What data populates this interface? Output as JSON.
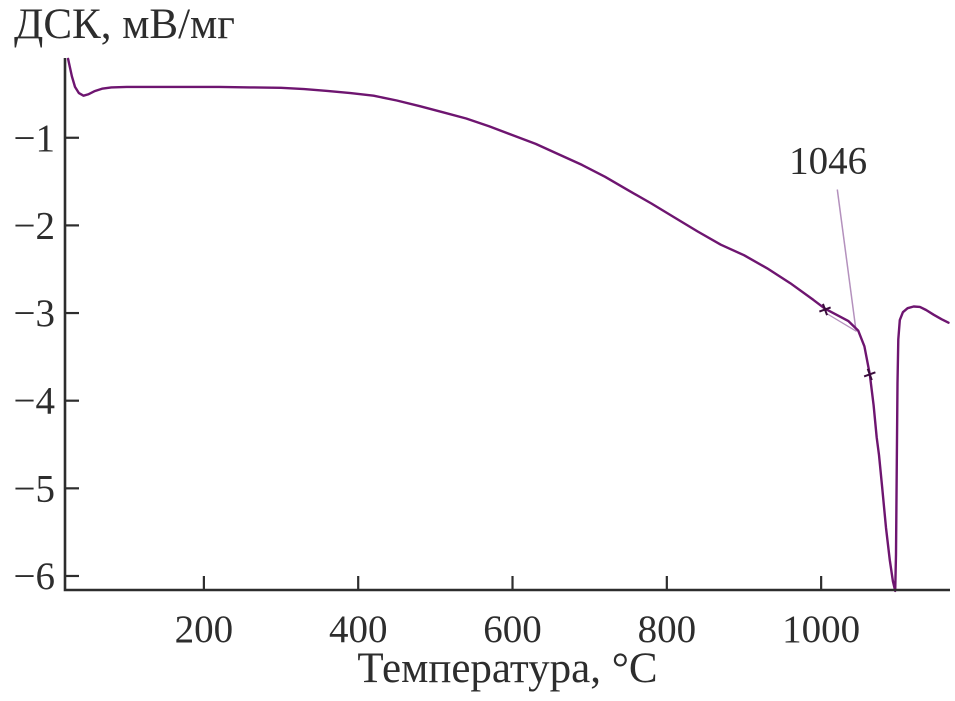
{
  "figure": {
    "background_color": "#ffffff"
  },
  "colors": {
    "curve": "#6e1570",
    "leader_line": "#b491bd",
    "axis": "#2d2d2d",
    "text": "#2d2d2d",
    "marker": "#3a0c3c"
  },
  "chart_data": {
    "type": "line",
    "title": "",
    "ylabel": "ДСК, мВ/мг",
    "xlabel": "Температура, °C",
    "xlim": [
      20,
      1167
    ],
    "ylim": [
      -6.16,
      -0.09
    ],
    "grid": false,
    "legend": false,
    "x_ticks": [
      {
        "value": 200,
        "label": "200"
      },
      {
        "value": 400,
        "label": "400"
      },
      {
        "value": 600,
        "label": "600"
      },
      {
        "value": 800,
        "label": "800"
      },
      {
        "value": 1000,
        "label": "1000"
      }
    ],
    "y_ticks": [
      {
        "value": -1,
        "label": "−1"
      },
      {
        "value": -2,
        "label": "−2"
      },
      {
        "value": -3,
        "label": "−3"
      },
      {
        "value": -4,
        "label": "−4"
      },
      {
        "value": -5,
        "label": "−5"
      },
      {
        "value": -6,
        "label": "−6"
      }
    ],
    "series": [
      {
        "name": "ДСК",
        "points": [
          [
            24,
            -0.1
          ],
          [
            26,
            -0.18
          ],
          [
            29,
            -0.3
          ],
          [
            33,
            -0.42
          ],
          [
            38,
            -0.49
          ],
          [
            44,
            -0.52
          ],
          [
            50,
            -0.505
          ],
          [
            58,
            -0.47
          ],
          [
            68,
            -0.44
          ],
          [
            80,
            -0.425
          ],
          [
            100,
            -0.42
          ],
          [
            140,
            -0.42
          ],
          [
            180,
            -0.42
          ],
          [
            220,
            -0.42
          ],
          [
            260,
            -0.425
          ],
          [
            300,
            -0.43
          ],
          [
            330,
            -0.445
          ],
          [
            360,
            -0.465
          ],
          [
            390,
            -0.49
          ],
          [
            420,
            -0.52
          ],
          [
            450,
            -0.575
          ],
          [
            480,
            -0.64
          ],
          [
            510,
            -0.71
          ],
          [
            540,
            -0.78
          ],
          [
            570,
            -0.87
          ],
          [
            600,
            -0.97
          ],
          [
            630,
            -1.07
          ],
          [
            660,
            -1.19
          ],
          [
            690,
            -1.31
          ],
          [
            720,
            -1.445
          ],
          [
            750,
            -1.6
          ],
          [
            780,
            -1.75
          ],
          [
            810,
            -1.91
          ],
          [
            840,
            -2.07
          ],
          [
            870,
            -2.22
          ],
          [
            900,
            -2.34
          ],
          [
            930,
            -2.49
          ],
          [
            960,
            -2.66
          ],
          [
            990,
            -2.85
          ],
          [
            1005,
            -2.95
          ],
          [
            1020,
            -3.02
          ],
          [
            1035,
            -3.09
          ],
          [
            1048,
            -3.2
          ],
          [
            1056,
            -3.38
          ],
          [
            1063,
            -3.7
          ],
          [
            1068,
            -4.05
          ],
          [
            1072,
            -4.42
          ],
          [
            1075,
            -4.62
          ],
          [
            1079,
            -4.98
          ],
          [
            1084,
            -5.45
          ],
          [
            1089,
            -5.82
          ],
          [
            1093,
            -6.06
          ],
          [
            1096,
            -6.17
          ],
          [
            1097,
            -5.75
          ],
          [
            1098,
            -4.7
          ],
          [
            1099,
            -3.8
          ],
          [
            1100,
            -3.3
          ],
          [
            1102,
            -3.08
          ],
          [
            1106,
            -2.99
          ],
          [
            1112,
            -2.945
          ],
          [
            1120,
            -2.925
          ],
          [
            1128,
            -2.93
          ],
          [
            1136,
            -2.965
          ],
          [
            1146,
            -3.02
          ],
          [
            1156,
            -3.07
          ],
          [
            1165,
            -3.11
          ]
        ]
      }
    ],
    "curve_markers": [
      {
        "x": 1005,
        "y": -2.96
      },
      {
        "x": 1063,
        "y": -3.7
      }
    ],
    "annotation": {
      "text": "1046",
      "label_x": 1009,
      "label_y": -1.25,
      "leader": [
        [
          1021,
          -1.59
        ],
        [
          1045,
          -3.19
        ]
      ],
      "tangent": [
        [
          1006,
          -3.0
        ],
        [
          1046,
          -3.21
        ]
      ]
    }
  }
}
